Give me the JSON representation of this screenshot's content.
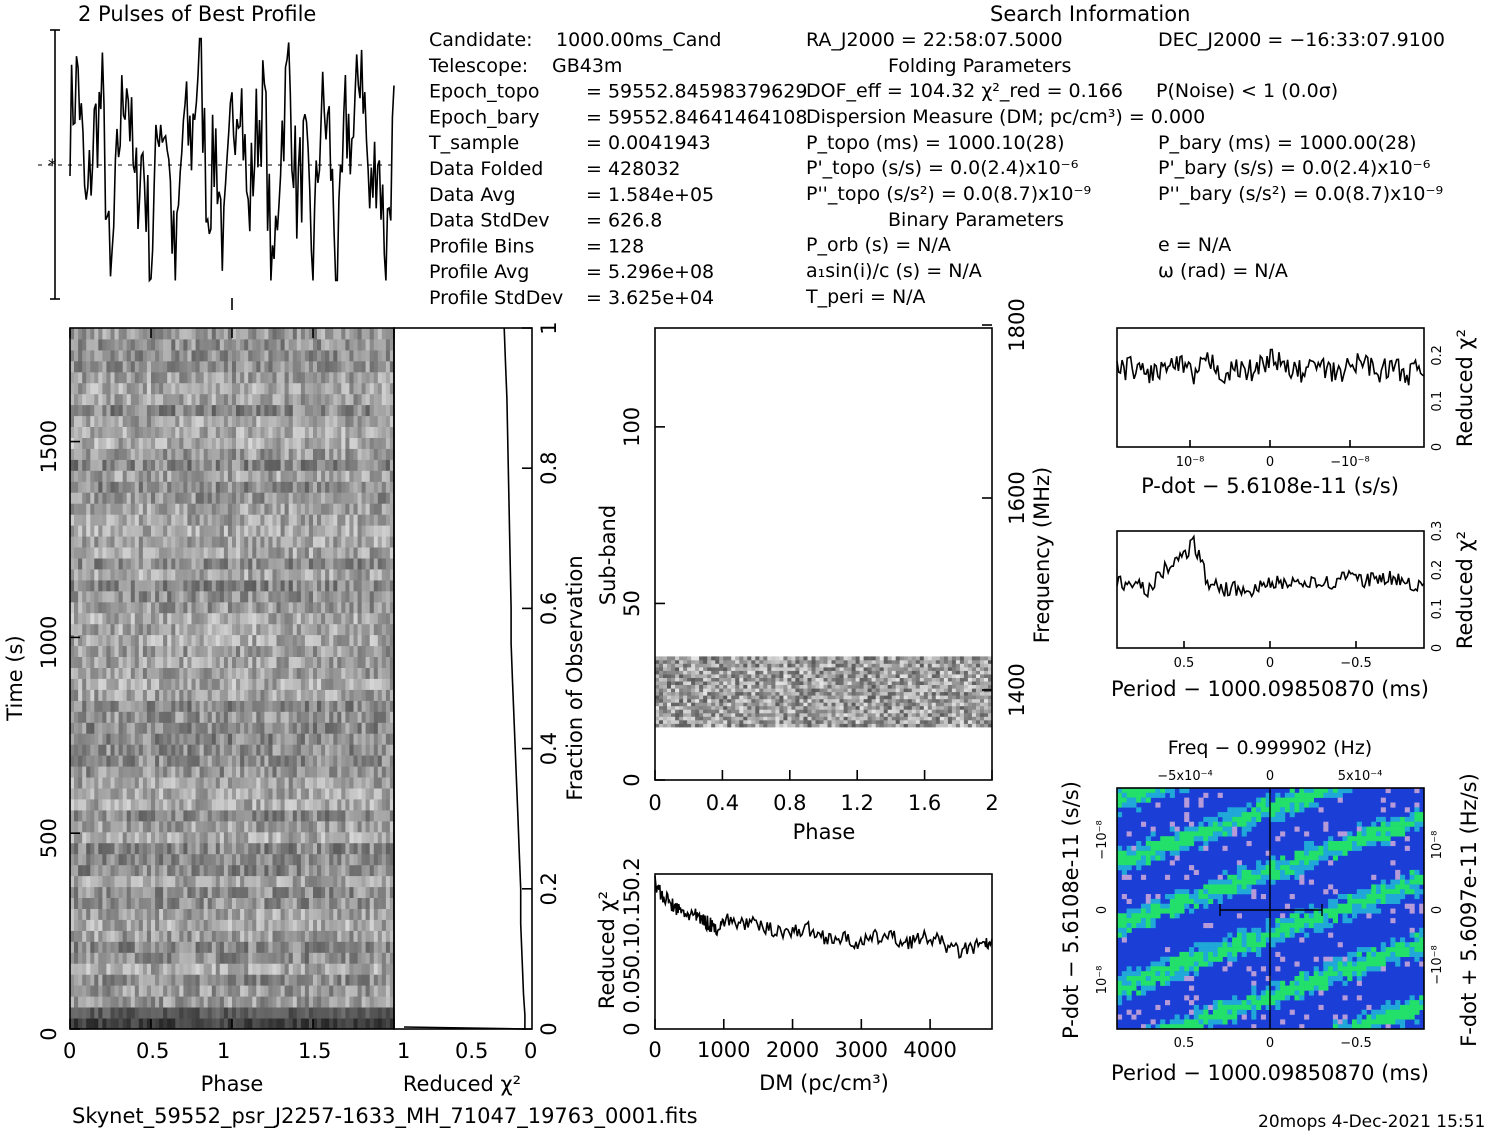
{
  "profile_title": "2 Pulses of Best Profile",
  "search_title": "Search Information",
  "folding_title": "Folding Parameters",
  "binary_title": "Binary Parameters",
  "info_left": [
    {
      "label": "Candidate:",
      "value": "1000.00ms_Cand"
    },
    {
      "label": "Telescope:",
      "value": "GB43m"
    },
    {
      "label": "Epoch_topo",
      "value": "= 59552.84598379629"
    },
    {
      "label": "Epoch_bary",
      "value": "= 59552.84641464108"
    },
    {
      "label": "T_sample",
      "value": "= 0.0041943"
    },
    {
      "label": "Data Folded",
      "value": "= 428032"
    },
    {
      "label": "Data Avg",
      "value": "= 1.584e+05"
    },
    {
      "label": "Data StdDev",
      "value": "= 626.8"
    },
    {
      "label": "Profile Bins",
      "value": "= 128"
    },
    {
      "label": "Profile Avg",
      "value": "= 5.296e+08"
    },
    {
      "label": "Profile StdDev",
      "value": "= 3.625e+04"
    }
  ],
  "info_mid": {
    "ra": "RA_J2000 = 22:58:07.5000",
    "dof": "DOF_eff = 104.32  χ²_red = 0.166",
    "noise": "P(Noise) < 1  (0.0σ)",
    "dm": "Dispersion Measure (DM; pc/cm³) = 0.000",
    "ptopo": "P_topo (ms) =  1000.10(28)",
    "pdtopo": "P'_topo (s/s) = 0.0(2.4)x10⁻⁶",
    "pddtopo": "P''_topo (s/s²) = 0.0(8.7)x10⁻⁹",
    "porb": "P_orb (s) = N/A",
    "asini": "a₁sin(i)/c (s) = N/A",
    "tperi": "T_peri = N/A"
  },
  "info_right": {
    "dec": "DEC_J2000 = −16:33:07.9100",
    "pbary": "P_bary (ms) =  1000.00(28)",
    "pdbary": "P'_bary (s/s) = 0.0(2.4)x10⁻⁶",
    "pddbary": "P''_bary (s/s²) = 0.0(8.7)x10⁻⁹",
    "e": "e = N/A",
    "omega": "ω (rad) = N/A"
  },
  "footer_file": "Skynet_59552_psr_J2257-1633_MH_71047_19763_0001.fits",
  "footer_right": "20mops  4-Dec-2021 15:51",
  "colors": {
    "ink": "#000000",
    "map_bg": "#1b3fd6",
    "map_hi": "#22e06a",
    "map_mid": "#20a8d8"
  },
  "chart_data": [
    {
      "type": "line",
      "name": "profile",
      "title": "2 Pulses of Best Profile",
      "x": [
        0,
        0.05,
        0.1,
        0.15,
        0.2,
        0.25,
        0.3,
        0.35,
        0.4,
        0.45,
        0.5,
        0.55,
        0.6,
        0.65,
        0.7,
        0.75,
        0.8,
        0.85,
        0.9,
        0.95,
        1.0,
        1.05,
        1.1,
        1.15,
        1.2,
        1.25,
        1.3,
        1.35,
        1.4,
        1.45,
        1.5,
        1.55,
        1.6,
        1.65,
        1.7,
        1.75,
        1.8,
        1.85,
        1.9,
        1.95,
        2.0
      ],
      "values": [
        0.4,
        0.85,
        -0.5,
        0.3,
        0.6,
        -1.2,
        0.2,
        0.9,
        -0.3,
        0.1,
        -0.9,
        0.5,
        0.3,
        -1.1,
        0.4,
        0.2,
        1.1,
        -0.4,
        0.2,
        -0.8,
        0.4,
        0.85,
        -0.5,
        0.3,
        0.6,
        -1.2,
        0.2,
        0.9,
        -0.3,
        0.1,
        -0.9,
        0.5,
        0.3,
        -1.1,
        0.4,
        0.2,
        1.1,
        -0.4,
        0.2,
        -0.8,
        0.4
      ]
    },
    {
      "type": "heatmap",
      "name": "time-phase",
      "xlabel": "Phase",
      "ylabel": "Time (s)",
      "xlim": [
        0,
        2
      ],
      "ylim": [
        0,
        1790
      ],
      "xticks": [
        "0",
        "0.5",
        "1",
        "1.5"
      ],
      "yticks": [
        "0",
        "500",
        "1000",
        "1500"
      ]
    },
    {
      "type": "line",
      "name": "redchi-vs-time",
      "xlabel": "Reduced χ²",
      "ylabel": "Fraction of Observation",
      "xticks": [
        "1",
        "0.5",
        "0"
      ],
      "yticks": [
        "0",
        "0.2",
        "0.4",
        "0.6",
        "0.8",
        "1"
      ],
      "x": [
        0.03,
        0.03,
        0.04,
        0.05,
        0.06,
        0.06,
        0.07,
        0.08,
        0.09,
        0.1,
        0.11,
        0.12,
        0.13,
        0.13,
        0.14,
        0.15,
        0.16,
        0.17,
        0.18
      ],
      "y": [
        0.0,
        0.02,
        0.05,
        0.1,
        0.15,
        0.2,
        0.25,
        0.3,
        0.35,
        0.4,
        0.45,
        0.5,
        0.55,
        0.6,
        0.7,
        0.8,
        0.9,
        0.95,
        1.0
      ]
    },
    {
      "type": "heatmap",
      "name": "subband-phase",
      "xlabel": "Phase",
      "ylabel": "Sub-band",
      "y2label": "Frequency (MHz)",
      "xlim": [
        0,
        2
      ],
      "ylim": [
        0,
        128
      ],
      "xticks": [
        "0",
        "0.4",
        "0.8",
        "1.2",
        "1.6",
        "2"
      ],
      "yticks": [
        "0",
        "50",
        "100"
      ],
      "y2ticks": [
        "1400",
        "1600",
        "1800"
      ],
      "active_subbands": [
        15,
        35
      ]
    },
    {
      "type": "line",
      "name": "redchi-vs-dm",
      "xlabel": "DM (pc/cm³)",
      "ylabel": "Reduced χ²",
      "xlim": [
        0,
        4900
      ],
      "ylim": [
        0,
        0.2
      ],
      "xticks": [
        "0",
        "1000",
        "2000",
        "3000",
        "4000"
      ],
      "yticks": [
        "0",
        "0.05",
        "0.1",
        "0.15",
        "0.2"
      ],
      "x": [
        0,
        100,
        200,
        300,
        400,
        500,
        600,
        700,
        800,
        900,
        1000,
        1200,
        1400,
        1600,
        1800,
        2000,
        2200,
        2400,
        2600,
        2800,
        3000,
        3200,
        3400,
        3600,
        3800,
        4000,
        4200,
        4400,
        4600,
        4800,
        4900
      ],
      "values": [
        0.19,
        0.17,
        0.165,
        0.155,
        0.15,
        0.148,
        0.145,
        0.14,
        0.135,
        0.13,
        0.14,
        0.138,
        0.135,
        0.13,
        0.128,
        0.125,
        0.13,
        0.12,
        0.118,
        0.115,
        0.11,
        0.118,
        0.12,
        0.112,
        0.115,
        0.118,
        0.11,
        0.1,
        0.105,
        0.108,
        0.11
      ]
    },
    {
      "type": "line",
      "name": "redchi-vs-pdot",
      "xlabel": "P-dot − 5.6108e-11 (s/s)",
      "ylabel": "Reduced χ²",
      "xticks": [
        "10⁻⁸",
        "0",
        "−10⁻⁸"
      ],
      "yticks": [
        "0",
        "0.1",
        "0.2"
      ],
      "x": [
        -1,
        -0.9,
        -0.8,
        -0.7,
        -0.6,
        -0.5,
        -0.4,
        -0.3,
        -0.2,
        -0.1,
        0,
        0.1,
        0.2,
        0.3,
        0.4,
        0.5,
        0.6,
        0.7,
        0.8,
        0.9,
        1
      ],
      "values": [
        0.165,
        0.175,
        0.16,
        0.17,
        0.18,
        0.155,
        0.19,
        0.16,
        0.17,
        0.165,
        0.2,
        0.17,
        0.165,
        0.18,
        0.16,
        0.17,
        0.19,
        0.165,
        0.175,
        0.16,
        0.17
      ]
    },
    {
      "type": "line",
      "name": "redchi-vs-period",
      "xlabel": "Period − 1000.09850870 (ms)",
      "ylabel": "Reduced χ²",
      "xticks": [
        "0.5",
        "0",
        "−0.5"
      ],
      "yticks": [
        "0",
        "0.1",
        "0.2",
        "0.3"
      ],
      "x": [
        -1,
        -0.9,
        -0.8,
        -0.7,
        -0.6,
        -0.5,
        -0.4,
        -0.3,
        -0.2,
        -0.1,
        0,
        0.1,
        0.2,
        0.3,
        0.4,
        0.5,
        0.6,
        0.7,
        0.8,
        0.9,
        1
      ],
      "values": [
        0.17,
        0.16,
        0.18,
        0.175,
        0.17,
        0.2,
        0.165,
        0.17,
        0.16,
        0.17,
        0.165,
        0.15,
        0.155,
        0.15,
        0.16,
        0.27,
        0.22,
        0.2,
        0.15,
        0.16,
        0.17
      ]
    },
    {
      "type": "heatmap",
      "name": "period-pdot",
      "title": "Freq − 0.999902 (Hz)",
      "xlabel": "Period − 1000.09850870 (ms)",
      "ylabel": "P-dot − 5.6108e-11 (s/s)",
      "y2label": "F-dot + 5.6097e-11 (Hz/s)",
      "xticks": [
        "0.5",
        "0",
        "−0.5"
      ],
      "x2ticks": [
        "−5x10⁻⁴",
        "0",
        "5x10⁻⁴"
      ],
      "yticks": [
        "10⁻⁸",
        "0",
        "−10⁻⁸"
      ],
      "y2ticks": [
        "−10⁻⁸",
        "0",
        "10⁻⁸"
      ]
    }
  ]
}
